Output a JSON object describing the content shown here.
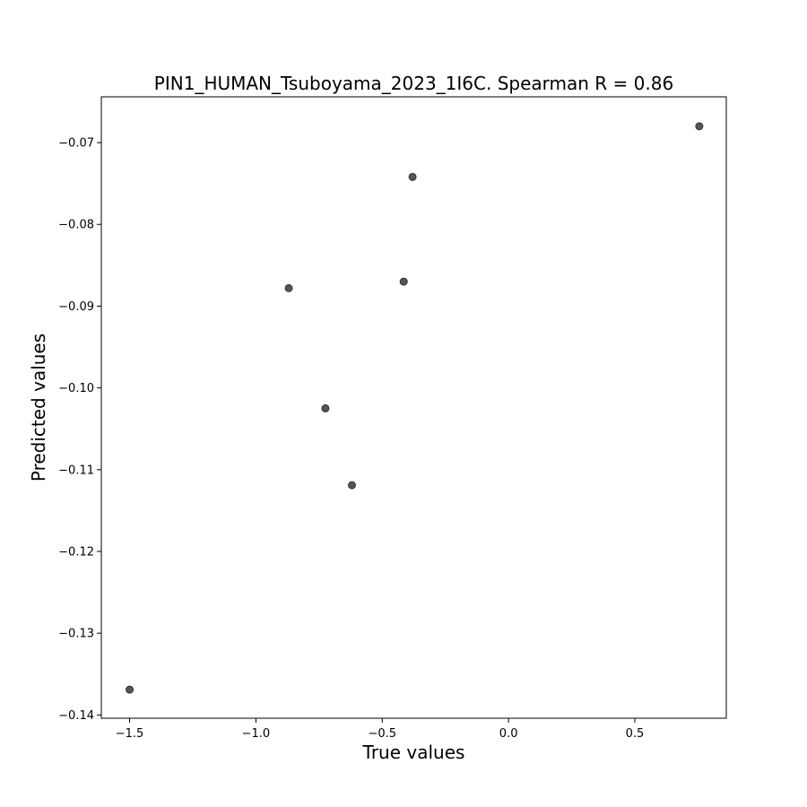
{
  "chart_data": {
    "type": "scatter",
    "title": "PIN1_HUMAN_Tsuboyama_2023_1I6C. Spearman R = 0.86",
    "xlabel": "True values",
    "ylabel": "Predicted values",
    "xlim": [
      -1.612,
      0.862
    ],
    "ylim": [
      -0.1404,
      -0.0644
    ],
    "x_ticks": [
      {
        "value": -1.5,
        "label": "−1.5"
      },
      {
        "value": -1.0,
        "label": "−1.0"
      },
      {
        "value": -0.5,
        "label": "−0.5"
      },
      {
        "value": 0.0,
        "label": "0.0"
      },
      {
        "value": 0.5,
        "label": "0.5"
      }
    ],
    "y_ticks": [
      {
        "value": -0.07,
        "label": "−0.07"
      },
      {
        "value": -0.08,
        "label": "−0.08"
      },
      {
        "value": -0.09,
        "label": "−0.09"
      },
      {
        "value": -0.1,
        "label": "−0.10"
      },
      {
        "value": -0.11,
        "label": "−0.11"
      },
      {
        "value": -0.12,
        "label": "−0.12"
      },
      {
        "value": -0.13,
        "label": "−0.13"
      },
      {
        "value": -0.14,
        "label": "−0.14"
      }
    ],
    "points": [
      {
        "x": -1.5,
        "y": -0.1369
      },
      {
        "x": -0.87,
        "y": -0.0878
      },
      {
        "x": -0.725,
        "y": -0.1025
      },
      {
        "x": -0.62,
        "y": -0.1119
      },
      {
        "x": -0.415,
        "y": -0.087
      },
      {
        "x": -0.38,
        "y": -0.0742
      },
      {
        "x": 0.755,
        "y": -0.068
      }
    ],
    "marker_color": "#555555",
    "grid": false,
    "legend": "none"
  }
}
